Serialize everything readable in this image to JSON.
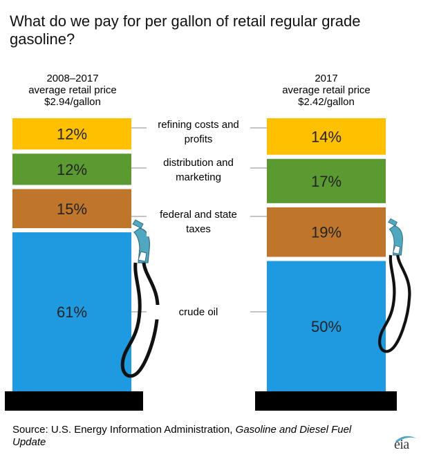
{
  "title": "What do we pay for per gallon of retail regular grade gasoline?",
  "source": {
    "prefix": "Source: U.S. Energy Information Administration, ",
    "italic": "Gasoline and Diesel Fuel Update"
  },
  "logo_text": "eia",
  "columns": [
    {
      "line1": "2008–2017",
      "line2": "average retail price",
      "line3": "$2.94/gallon"
    },
    {
      "line1": "2017",
      "line2": "average retail price",
      "line3": "$2.42/gallon"
    }
  ],
  "category_labels": [
    {
      "line1": "refining costs and",
      "line2": "profits"
    },
    {
      "line1": "distribution and",
      "line2": "marketing"
    },
    {
      "line1": "federal and state",
      "line2": "taxes"
    },
    {
      "line1": "crude oil",
      "line2": ""
    }
  ],
  "colors": {
    "refining": "#FFC000",
    "distribution": "#5A9A30",
    "taxes": "#C0762A",
    "crude": "#1E9BE0",
    "base": "#000000",
    "pump": "#4FA7C0"
  },
  "chart_data": {
    "type": "bar",
    "stacked": true,
    "categories": [
      "2008–2017",
      "2017"
    ],
    "series": [
      {
        "name": "refining costs and profits",
        "values": [
          12,
          14
        ],
        "labels": [
          "12%",
          "14%"
        ]
      },
      {
        "name": "distribution and marketing",
        "values": [
          12,
          17
        ],
        "labels": [
          "12%",
          "17%"
        ]
      },
      {
        "name": "federal and state taxes",
        "values": [
          15,
          19
        ],
        "labels": [
          "15%",
          "19%"
        ]
      },
      {
        "name": "crude oil",
        "values": [
          61,
          50
        ],
        "labels": [
          "61%",
          "50%"
        ]
      }
    ],
    "totals_per_gallon": [
      "$2.94/gallon",
      "$2.42/gallon"
    ],
    "title": "What do we pay for per gallon of retail regular grade gasoline?"
  }
}
